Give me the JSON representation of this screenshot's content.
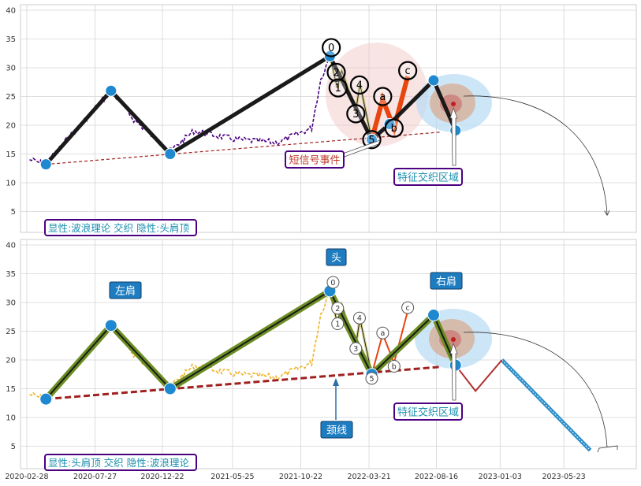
{
  "chart_data": [
    {
      "type": "line",
      "panel": "top",
      "ylim": [
        0,
        41
      ],
      "yticks": [
        5,
        10,
        15,
        20,
        25,
        30,
        35,
        40
      ],
      "grid": true,
      "colors": {
        "price": "#4b0082",
        "wave": "#1a1a1a",
        "abc": "#e8450f",
        "neckline": "#a02020",
        "node": "#1e88d0"
      },
      "wave_path": {
        "x": [
          "2020-04-10",
          "2020-08-31",
          "2021-01-08",
          "2021-12-25",
          "2022-03-27",
          "2022-05-05",
          "2022-08-10",
          "2022-09-27"
        ],
        "y": [
          13.2,
          26.0,
          15.0,
          32.0,
          17.5,
          20.2,
          27.8,
          19.1
        ]
      },
      "wave_labels": [
        {
          "text": "0",
          "x": "2021-12-28",
          "y": 33.5
        },
        {
          "text": "2",
          "x": "2022-01-08",
          "y": 29.2
        },
        {
          "text": "1",
          "x": "2022-01-12",
          "y": 26.5
        },
        {
          "text": "4",
          "x": "2022-02-28",
          "y": 27.0
        },
        {
          "text": "3",
          "x": "2022-02-20",
          "y": 22.0
        },
        {
          "text": "5",
          "x": "2022-03-27",
          "y": 17.5
        },
        {
          "text": "a",
          "x": "2022-04-20",
          "y": 25.0
        },
        {
          "text": "c",
          "x": "2022-06-14",
          "y": 29.5
        },
        {
          "text": "b",
          "x": "2022-05-15",
          "y": 19.5
        }
      ],
      "annotations": [
        {
          "text": "短信号事件",
          "color": "#c0392b",
          "x": "2021-10-13",
          "y": 13.5
        },
        {
          "text": "特征交织区域",
          "color": "#1a8fb0",
          "x": "2022-07-20",
          "y": 11.0
        }
      ],
      "footer_label": "显性:波浪理论 交织 隐性:头肩顶"
    },
    {
      "type": "line",
      "panel": "bottom",
      "ylim": [
        2,
        41
      ],
      "yticks": [
        5,
        10,
        15,
        20,
        25,
        30,
        35,
        40
      ],
      "grid": true,
      "x_ticks": [
        "2020-02-28",
        "2020-07-27",
        "2020-12-22",
        "2021-05-25",
        "2021-10-22",
        "2022-03-21",
        "2022-08-16",
        "2023-01-03",
        "2023-05-23"
      ],
      "colors": {
        "price": "#f0b429",
        "shoulders": "#6b8e23",
        "neckline": "#a02020",
        "projection": "#2a8ec9",
        "node": "#1e88d0"
      },
      "hs_path": {
        "x": [
          "2020-04-10",
          "2020-08-31",
          "2021-01-08",
          "2021-12-25",
          "2022-03-27",
          "2022-08-10",
          "2022-09-27"
        ],
        "y": [
          13.2,
          26.0,
          15.0,
          32.0,
          17.5,
          27.8,
          19.1
        ]
      },
      "projection_path": {
        "x": [
          "2022-09-27",
          "2022-11-10",
          "2023-01-07",
          "2023-07-20"
        ],
        "y": [
          19.1,
          14.6,
          20.0,
          4.3
        ]
      },
      "labels": [
        {
          "text": "左肩",
          "x": "2020-08-31",
          "y": 32.0
        },
        {
          "text": "头",
          "x": "2021-12-25",
          "y": 37.5
        },
        {
          "text": "右肩",
          "x": "2022-08-10",
          "y": 33.5
        },
        {
          "text": "颈线",
          "x": "2021-12-25",
          "y": 7.5
        }
      ],
      "wave_labels": [
        {
          "text": "0",
          "x": "2022-01-01",
          "y": 33.5
        },
        {
          "text": "2",
          "x": "2022-01-11",
          "y": 29.0
        },
        {
          "text": "1",
          "x": "2022-01-11",
          "y": 26.3
        },
        {
          "text": "4",
          "x": "2022-02-28",
          "y": 27.3
        },
        {
          "text": "3",
          "x": "2022-02-20",
          "y": 22.0
        },
        {
          "text": "5",
          "x": "2022-03-27",
          "y": 16.8
        },
        {
          "text": "a",
          "x": "2022-04-20",
          "y": 24.7
        },
        {
          "text": "c",
          "x": "2022-06-14",
          "y": 29.1
        },
        {
          "text": "b",
          "x": "2022-05-15",
          "y": 18.9
        }
      ],
      "annotations": [
        {
          "text": "特征交织区域",
          "color": "#1a8fb0",
          "x": "2022-07-20",
          "y": 10.5
        }
      ],
      "footer_label": "显性:头肩顶 交织 隐性:波浪理论"
    }
  ]
}
